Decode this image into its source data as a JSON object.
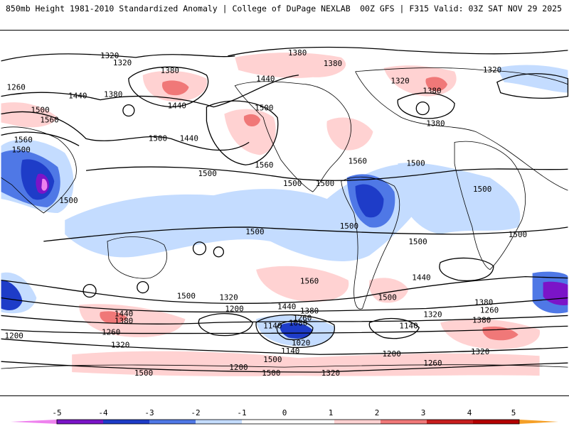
{
  "header": {
    "title": "850mb Height 1981-2010 Standardized Anomaly | College of DuPage NEXLAB",
    "run_info": "00Z GFS | F315 Valid: 03Z SAT NOV 29 2025"
  },
  "colors": {
    "neg5": "#ee82ee",
    "neg4": "#7b14c8",
    "neg3": "#1e3cc8",
    "neg2": "#4f78e6",
    "neg1": "#c4dcff",
    "zero": "#ffffff",
    "pos1": "#ffd2d2",
    "pos2": "#f07878",
    "pos3": "#c81e1e",
    "pos4": "#b40000",
    "pos5": "#f5a028"
  },
  "contour_labels": [
    "1320",
    "1320",
    "1380",
    "1380",
    "1320",
    "1380",
    "1260",
    "1440",
    "1320",
    "1380",
    "1380",
    "1440",
    "1500",
    "1560",
    "1500",
    "1440",
    "1380",
    "1560",
    "1500",
    "1440",
    "1500",
    "1560",
    "1500",
    "1500",
    "1500",
    "1560",
    "1500",
    "1500",
    "1500",
    "1500",
    "1500",
    "1500",
    "1500",
    "1440",
    "1560",
    "1500",
    "1500",
    "1320",
    "1200",
    "1440",
    "1380",
    "1260",
    "1140",
    "1080",
    "1020",
    "1140",
    "1380",
    "1260",
    "1320",
    "1140",
    "1200",
    "1260",
    "1200",
    "1260",
    "1320",
    "1200",
    "1320",
    "1440",
    "1380",
    "1380",
    "1320",
    "1500",
    "1500",
    "1500"
  ],
  "colorbar": {
    "ticks": [
      "-5",
      "-4",
      "-3",
      "-2",
      "-1",
      "0",
      "1",
      "2",
      "3",
      "4",
      "5"
    ]
  }
}
